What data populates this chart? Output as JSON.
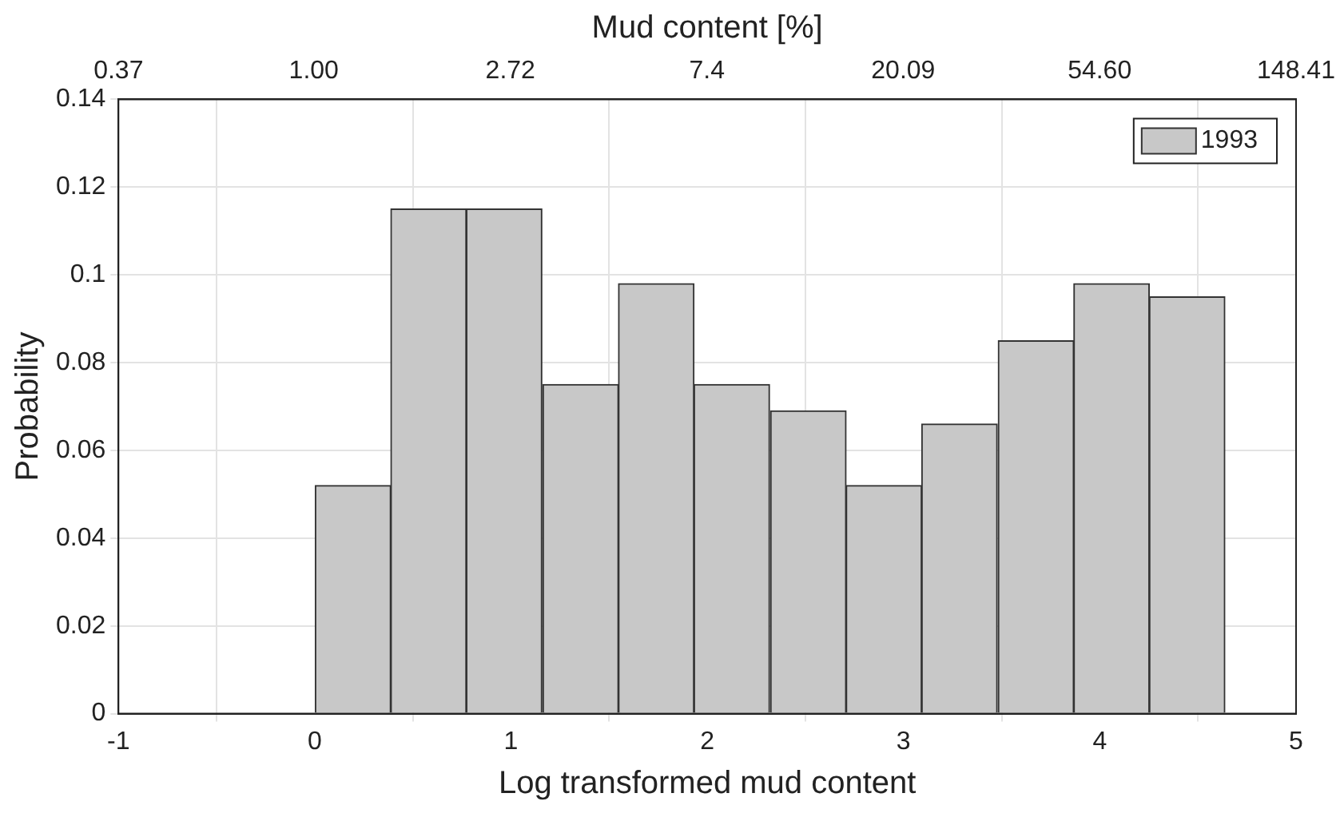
{
  "chart_data": {
    "type": "histogram",
    "xlabel": "Log transformed mud content",
    "ylabel": "Probability",
    "x2label": "Mud content [%]",
    "bins": [
      0,
      0.39,
      0.77,
      1.16,
      1.55,
      1.93,
      2.32,
      2.71,
      3.09,
      3.48,
      3.87,
      4.25,
      4.64
    ],
    "series": [
      {
        "name": "1993",
        "color": "#c8c8c8",
        "values": [
          0.052,
          0.115,
          0.115,
          0.075,
          0.098,
          0.075,
          0.069,
          0.052,
          0.066,
          0.085,
          0.098,
          0.095
        ]
      }
    ],
    "xlim": [
      -1,
      5
    ],
    "xticks": [
      -1,
      0,
      1,
      2,
      3,
      4,
      5
    ],
    "x2lim": [
      0.37,
      148.41
    ],
    "x2ticks": [
      0.37,
      {
        "value": 1,
        "label": "1.00"
      },
      2.72,
      7.4,
      20.09,
      {
        "value": 54.6,
        "label": "54.60"
      },
      148.41
    ],
    "log": "x2",
    "ylim": [
      0,
      0.14
    ],
    "yticks": [
      0,
      0.02,
      0.04,
      0.06,
      0.08,
      0.1,
      0.12,
      0.14
    ],
    "grid": true,
    "legend": "top right"
  }
}
